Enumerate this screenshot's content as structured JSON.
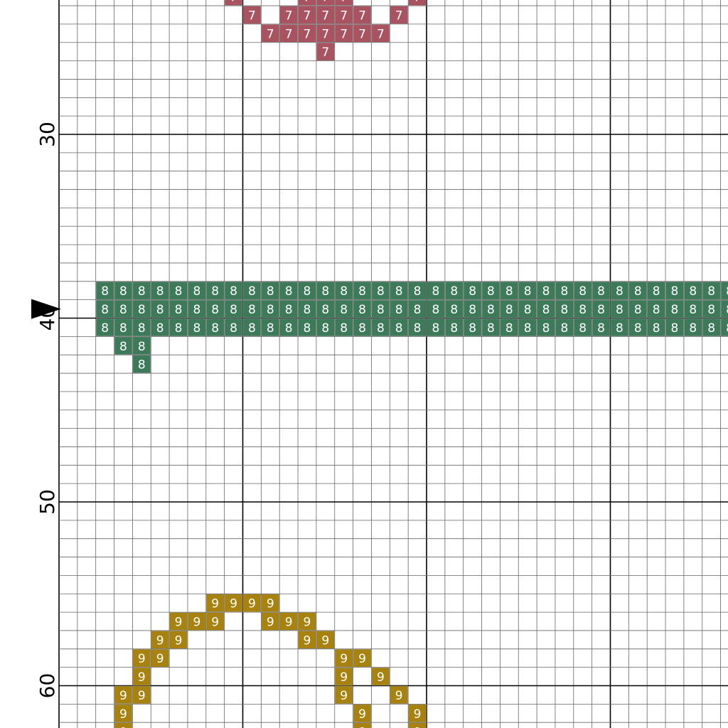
{
  "chart_data": {
    "type": "cross-stitch-pattern",
    "row_labels": [
      "30",
      "40",
      "50",
      "60"
    ],
    "row_marker_icon": "triangle-right-marker",
    "marker_row": 39,
    "symbols": [
      {
        "symbol": "7",
        "color": "#a8535f",
        "stitches": [
          {
            "row": 22,
            "cols": [
              9,
              13,
              14,
              15,
              19
            ]
          },
          {
            "row": 23,
            "cols": [
              10,
              12,
              13,
              14,
              15,
              16,
              18
            ]
          },
          {
            "row": 24,
            "cols": [
              11,
              12,
              13,
              14,
              15,
              16,
              17
            ]
          },
          {
            "row": 25,
            "cols": [
              14
            ]
          }
        ]
      },
      {
        "symbol": "8",
        "color": "#3d7a5a",
        "stitches": [
          {
            "row": 38,
            "from": 2,
            "to": 36
          },
          {
            "row": 39,
            "from": 2,
            "to": 36
          },
          {
            "row": 40,
            "from": 2,
            "to": 36
          },
          {
            "row": 41,
            "cols": [
              3,
              4
            ]
          },
          {
            "row": 42,
            "cols": [
              4
            ]
          }
        ]
      },
      {
        "symbol": "9",
        "color": "#a8820e",
        "stitches": [
          {
            "row": 55,
            "cols": [
              8,
              9,
              10,
              11
            ]
          },
          {
            "row": 56,
            "cols": [
              6,
              7,
              8,
              11,
              12,
              13
            ]
          },
          {
            "row": 57,
            "cols": [
              5,
              6,
              13,
              14
            ]
          },
          {
            "row": 58,
            "cols": [
              4,
              5,
              15,
              16
            ]
          },
          {
            "row": 59,
            "cols": [
              4,
              15,
              17
            ]
          },
          {
            "row": 60,
            "cols": [
              3,
              4,
              15,
              18
            ]
          },
          {
            "row": 61,
            "cols": [
              3,
              16,
              19
            ]
          },
          {
            "row": 62,
            "cols": [
              3,
              16,
              19
            ]
          }
        ]
      }
    ],
    "grid": true
  }
}
